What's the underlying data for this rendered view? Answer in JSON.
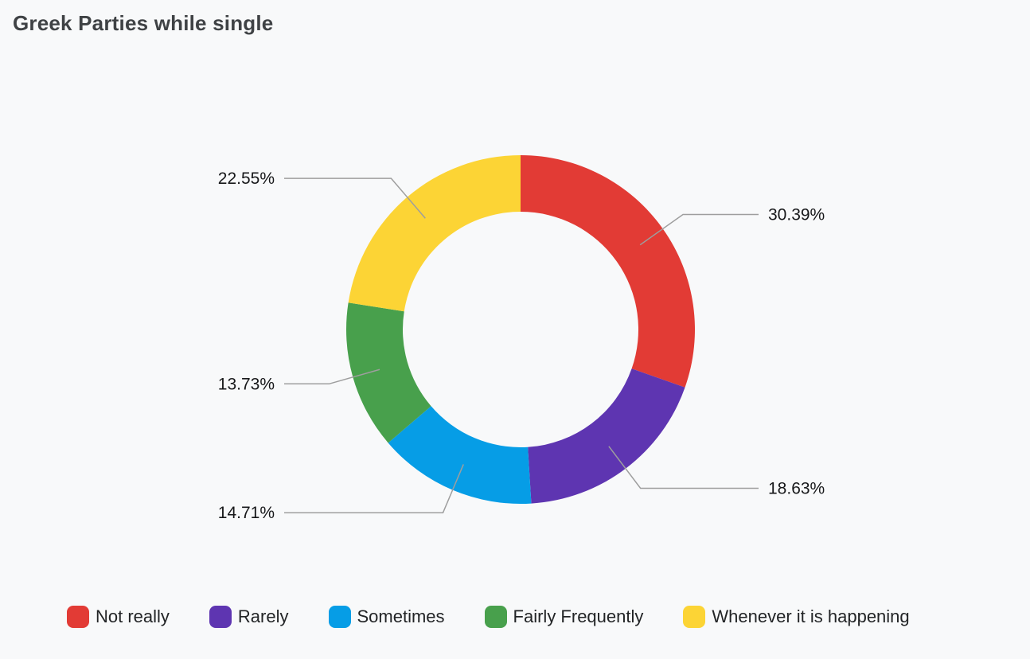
{
  "title": "Greek Parties while single",
  "colors": {
    "background": "#f8f9fa",
    "title_text": "#3f4245",
    "label_text": "#17181a",
    "leader_line": "#9e9e9e",
    "legend_text": "#222426"
  },
  "chart_data": {
    "type": "pie",
    "subtype": "donut",
    "title": "Greek Parties while single",
    "direction": "clockwise",
    "start_angle_deg": 0,
    "legend_position": "bottom",
    "labels": "outside with leader lines",
    "slices": [
      {
        "label": "Not really",
        "value_pct": 30.39,
        "display": "30.39%",
        "color": "#e23b35"
      },
      {
        "label": "Rarely",
        "value_pct": 18.63,
        "display": "18.63%",
        "color": "#5e35b1"
      },
      {
        "label": "Sometimes",
        "value_pct": 14.71,
        "display": "14.71%",
        "color": "#069de6"
      },
      {
        "label": "Fairly Frequently",
        "value_pct": 13.73,
        "display": "13.73%",
        "color": "#48a04c"
      },
      {
        "label": "Whenever it is happening",
        "value_pct": 22.55,
        "display": "22.55%",
        "color": "#fcd435"
      }
    ]
  }
}
